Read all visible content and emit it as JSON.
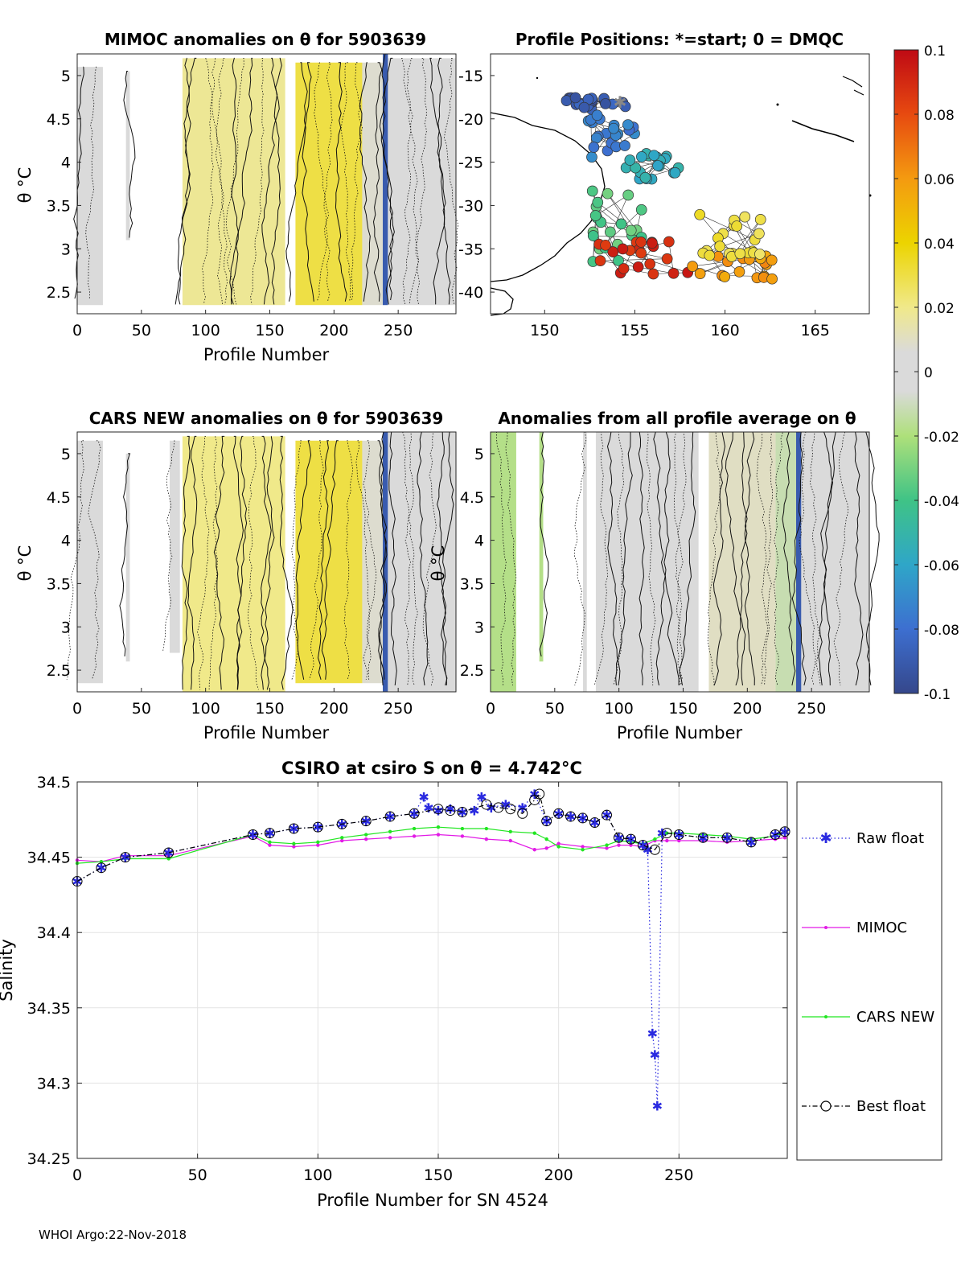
{
  "footer": "WHOI Argo:22-Nov-2018",
  "colors": {
    "raw": "#2a2ae0",
    "mimoc": "#e21be6",
    "cars": "#22e622",
    "best": "#000000"
  },
  "colorbar": {
    "ticks": [
      "0.1",
      "0.08",
      "0.06",
      "0.04",
      "0.02",
      "0",
      "-0.02",
      "-0.04",
      "-0.06",
      "-0.08",
      "-0.1"
    ],
    "range": [
      -0.1,
      0.1
    ]
  },
  "panels": {
    "mimoc": {
      "title": "MIMOC anomalies on θ  for 5903639",
      "xlabel": "Profile Number",
      "ylabel": "θ °C",
      "xticks": [
        "0",
        "50",
        "100",
        "150",
        "200",
        "250"
      ],
      "yticks": [
        "5",
        "4.5",
        "4",
        "3.5",
        "3",
        "2.5"
      ]
    },
    "positions": {
      "title": "Profile Positions: *=start; 0 = DMQC",
      "xticks": [
        "150",
        "155",
        "160",
        "165"
      ],
      "yticks": [
        "-15",
        "-20",
        "-25",
        "-30",
        "-35",
        "-40"
      ]
    },
    "cars": {
      "title": "CARS NEW anomalies on θ for 5903639",
      "xlabel": "Profile Number",
      "ylabel": "θ °C",
      "xticks": [
        "0",
        "50",
        "100",
        "150",
        "200",
        "250"
      ],
      "yticks": [
        "5",
        "4.5",
        "4",
        "3.5",
        "3",
        "2.5"
      ]
    },
    "allavg": {
      "title": "Anomalies from all profile average on θ",
      "xlabel": "Profile Number",
      "ylabel": "θ °C",
      "xticks": [
        "0",
        "50",
        "100",
        "150",
        "200",
        "250"
      ],
      "yticks": [
        "5",
        "4.5",
        "4",
        "3.5",
        "3",
        "2.5"
      ]
    },
    "salinity": {
      "title": "CSIRO at csiro S on θ = 4.742°C",
      "xlabel": "Profile Number for SN 4524",
      "ylabel": "Salinity",
      "xticks": [
        "0",
        "50",
        "100",
        "150",
        "200",
        "250"
      ],
      "yticks": [
        "34.5",
        "34.45",
        "34.4",
        "34.35",
        "34.3",
        "34.25"
      ],
      "legend": [
        "Raw float",
        "MIMOC",
        "CARS NEW",
        "Best float"
      ]
    }
  },
  "chart_data": [
    {
      "type": "heatmap",
      "title": "MIMOC anomalies on θ  for 5903639",
      "xlabel": "Profile Number",
      "ylabel": "θ °C",
      "xlim": [
        0,
        295
      ],
      "ylim": [
        2.25,
        5.25
      ],
      "colorlim": [
        -0.1,
        0.1
      ],
      "blocks": [
        {
          "x": [
            0,
            20
          ],
          "ymin": 2.35,
          "ymax": 5.1,
          "value": 0.005
        },
        {
          "x": [
            38,
            41
          ],
          "ymin": 3.1,
          "ymax": 5.05,
          "value": 0.005
        },
        {
          "x": [
            82,
            162
          ],
          "ymin": 2.35,
          "ymax": 5.2,
          "value": 0.018
        },
        {
          "x": [
            170,
            222
          ],
          "ymin": 2.35,
          "ymax": 5.15,
          "value": 0.03
        },
        {
          "x": [
            222,
            238
          ],
          "ymin": 2.35,
          "ymax": 5.15,
          "value": 0.008
        },
        {
          "x": [
            238,
            242
          ],
          "ymin": 2.35,
          "ymax": 5.25,
          "value": -0.09
        },
        {
          "x": [
            242,
            295
          ],
          "ymin": 2.35,
          "ymax": 5.2,
          "value": 0.005
        }
      ]
    },
    {
      "type": "scatter",
      "title": "Profile Positions: *=start; 0 = DMQC",
      "xlim": [
        147,
        168
      ],
      "ylim": [
        -42.5,
        -12.5
      ],
      "clusters": [
        {
          "name": "start",
          "lon_range": [
            151.2,
            154.5
          ],
          "lat_range": [
            -19,
            -17.5
          ],
          "value": -0.09
        },
        {
          "name": "north",
          "lon_range": [
            152,
            155
          ],
          "lat_range": [
            -24.5,
            -19.5
          ],
          "value": -0.075
        },
        {
          "name": "mid",
          "lon_range": [
            154.5,
            157.5
          ],
          "lat_range": [
            -27,
            -24
          ],
          "value": -0.055
        },
        {
          "name": "coast",
          "lon_range": [
            152.5,
            155.5
          ],
          "lat_range": [
            -36.5,
            -27
          ],
          "value": -0.035
        },
        {
          "name": "southwest",
          "lon_range": [
            153,
            158
          ],
          "lat_range": [
            -38,
            -34
          ],
          "value": 0.09
        },
        {
          "name": "southeast",
          "lon_range": [
            158,
            163
          ],
          "lat_range": [
            -38.5,
            -35
          ],
          "value": 0.06
        },
        {
          "name": "east",
          "lon_range": [
            158.5,
            162
          ],
          "lat_range": [
            -36,
            -31
          ],
          "value": 0.03
        }
      ]
    },
    {
      "type": "heatmap",
      "title": "CARS NEW anomalies on θ for 5903639",
      "xlabel": "Profile Number",
      "ylabel": "θ °C",
      "xlim": [
        0,
        295
      ],
      "ylim": [
        2.25,
        5.25
      ],
      "colorlim": [
        -0.1,
        0.1
      ],
      "blocks": [
        {
          "x": [
            0,
            20
          ],
          "ymin": 2.35,
          "ymax": 5.15,
          "value": 0.005
        },
        {
          "x": [
            38,
            41
          ],
          "ymin": 2.6,
          "ymax": 5.0,
          "value": 0.005
        },
        {
          "x": [
            72,
            80
          ],
          "ymin": 2.7,
          "ymax": 5.15,
          "value": 0.005
        },
        {
          "x": [
            82,
            162
          ],
          "ymin": 2.25,
          "ymax": 5.2,
          "value": 0.02
        },
        {
          "x": [
            170,
            222
          ],
          "ymin": 2.35,
          "ymax": 5.15,
          "value": 0.03
        },
        {
          "x": [
            222,
            238
          ],
          "ymin": 2.35,
          "ymax": 5.15,
          "value": 0.008
        },
        {
          "x": [
            238,
            242
          ],
          "ymin": 2.25,
          "ymax": 5.25,
          "value": -0.09
        },
        {
          "x": [
            242,
            295
          ],
          "ymin": 2.25,
          "ymax": 5.25,
          "value": 0.005
        }
      ]
    },
    {
      "type": "heatmap",
      "title": "Anomalies from all profile average on θ",
      "xlabel": "Profile Number",
      "ylabel": "θ °C",
      "xlim": [
        0,
        295
      ],
      "ylim": [
        2.25,
        5.25
      ],
      "colorlim": [
        -0.1,
        0.1
      ],
      "blocks": [
        {
          "x": [
            0,
            20
          ],
          "ymin": 2.25,
          "ymax": 5.25,
          "value": -0.018
        },
        {
          "x": [
            38,
            41
          ],
          "ymin": 2.6,
          "ymax": 5.25,
          "value": -0.018
        },
        {
          "x": [
            72,
            75
          ],
          "ymin": 2.25,
          "ymax": 5.25,
          "value": 0.005
        },
        {
          "x": [
            82,
            162
          ],
          "ymin": 2.25,
          "ymax": 5.25,
          "value": 0.004
        },
        {
          "x": [
            170,
            222
          ],
          "ymin": 2.25,
          "ymax": 5.25,
          "value": 0.01
        },
        {
          "x": [
            222,
            238
          ],
          "ymin": 2.25,
          "ymax": 5.25,
          "value": -0.012
        },
        {
          "x": [
            238,
            242
          ],
          "ymin": 2.25,
          "ymax": 5.25,
          "value": -0.09
        },
        {
          "x": [
            242,
            295
          ],
          "ymin": 2.25,
          "ymax": 5.25,
          "value": 0.002
        }
      ]
    },
    {
      "type": "line",
      "title": "CSIRO at csiro S on θ = 4.742°C",
      "xlabel": "Profile Number for SN 4524",
      "ylabel": "Salinity",
      "xlim": [
        0,
        295
      ],
      "ylim": [
        34.25,
        34.5
      ],
      "grid": true,
      "legend_position": "right",
      "series": [
        {
          "name": "Raw float",
          "style": "dotted-star",
          "x": [
            0,
            10,
            20,
            38,
            73,
            80,
            90,
            100,
            110,
            120,
            130,
            140,
            144,
            146,
            150,
            155,
            160,
            165,
            168,
            172,
            178,
            185,
            190,
            195,
            200,
            205,
            210,
            215,
            220,
            225,
            230,
            235,
            237,
            239,
            240,
            241,
            243,
            250,
            260,
            270,
            280,
            290,
            294
          ],
          "y": [
            34.434,
            34.443,
            34.45,
            34.453,
            34.465,
            34.466,
            34.469,
            34.47,
            34.472,
            34.474,
            34.477,
            34.479,
            34.49,
            34.483,
            34.481,
            34.482,
            34.48,
            34.481,
            34.49,
            34.483,
            34.485,
            34.483,
            34.492,
            34.474,
            34.479,
            34.477,
            34.476,
            34.473,
            34.478,
            34.463,
            34.462,
            34.458,
            34.455,
            34.333,
            34.319,
            34.285,
            34.466,
            34.465,
            34.463,
            34.463,
            34.46,
            34.465,
            34.467
          ]
        },
        {
          "name": "MIMOC",
          "style": "solid-dot",
          "x": [
            0,
            10,
            20,
            38,
            73,
            80,
            90,
            100,
            110,
            120,
            130,
            140,
            150,
            160,
            170,
            180,
            190,
            195,
            200,
            210,
            220,
            225,
            230,
            235,
            240,
            245,
            250,
            260,
            270,
            280,
            290,
            294
          ],
          "y": [
            34.448,
            34.447,
            34.451,
            34.451,
            34.464,
            34.458,
            34.457,
            34.458,
            34.461,
            34.462,
            34.463,
            34.464,
            34.465,
            34.464,
            34.462,
            34.461,
            34.455,
            34.456,
            34.459,
            34.457,
            34.456,
            34.458,
            34.458,
            34.457,
            34.461,
            34.461,
            34.461,
            34.461,
            34.46,
            34.461,
            34.462,
            34.463
          ]
        },
        {
          "name": "CARS NEW",
          "style": "solid-dot",
          "x": [
            0,
            10,
            20,
            38,
            73,
            80,
            90,
            100,
            110,
            120,
            130,
            140,
            150,
            160,
            170,
            180,
            190,
            195,
            200,
            210,
            220,
            225,
            230,
            235,
            240,
            245,
            250,
            260,
            270,
            280,
            290,
            294
          ],
          "y": [
            34.446,
            34.447,
            34.449,
            34.449,
            34.465,
            34.46,
            34.459,
            34.46,
            34.463,
            34.465,
            34.467,
            34.469,
            34.47,
            34.469,
            34.469,
            34.467,
            34.466,
            34.462,
            34.457,
            34.455,
            34.458,
            34.461,
            34.46,
            34.459,
            34.462,
            34.466,
            34.466,
            34.465,
            34.464,
            34.462,
            34.464,
            34.467
          ]
        },
        {
          "name": "Best float",
          "style": "dashdot-circle",
          "x": [
            0,
            10,
            20,
            38,
            73,
            80,
            90,
            100,
            110,
            120,
            130,
            140,
            150,
            155,
            160,
            170,
            175,
            180,
            185,
            190,
            192,
            195,
            200,
            205,
            210,
            215,
            220,
            225,
            230,
            235,
            240,
            245,
            250,
            260,
            270,
            280,
            290,
            294
          ],
          "y": [
            34.434,
            34.443,
            34.45,
            34.453,
            34.465,
            34.466,
            34.469,
            34.47,
            34.472,
            34.474,
            34.477,
            34.479,
            34.482,
            34.481,
            34.48,
            34.485,
            34.483,
            34.482,
            34.479,
            34.488,
            34.492,
            34.474,
            34.479,
            34.477,
            34.476,
            34.473,
            34.478,
            34.463,
            34.462,
            34.458,
            34.455,
            34.466,
            34.465,
            34.463,
            34.463,
            34.46,
            34.465,
            34.467
          ]
        }
      ]
    }
  ]
}
